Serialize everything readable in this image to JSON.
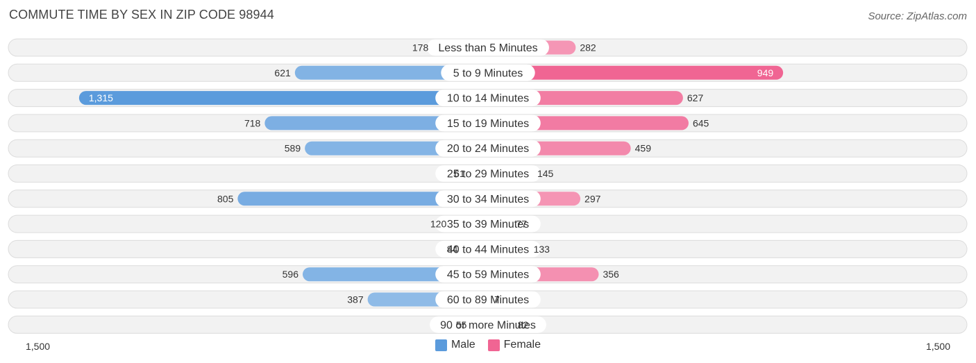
{
  "header": {
    "title": "COMMUTE TIME BY SEX IN ZIP CODE 98944",
    "source": "Source: ZipAtlas.com"
  },
  "colors": {
    "male": "#5b9bdc",
    "female": "#f06593"
  },
  "chart_data": {
    "type": "bar",
    "orientation": "diverging-horizontal",
    "categories": [
      "Less than 5 Minutes",
      "5 to 9 Minutes",
      "10 to 14 Minutes",
      "15 to 19 Minutes",
      "20 to 24 Minutes",
      "25 to 29 Minutes",
      "30 to 34 Minutes",
      "35 to 39 Minutes",
      "40 to 44 Minutes",
      "45 to 59 Minutes",
      "60 to 89 Minutes",
      "90 or more Minutes"
    ],
    "series": [
      {
        "name": "Male",
        "values": [
          178,
          621,
          1315,
          718,
          589,
          61,
          805,
          120,
          84,
          596,
          387,
          55
        ]
      },
      {
        "name": "Female",
        "values": [
          282,
          949,
          627,
          645,
          459,
          145,
          297,
          77,
          133,
          356,
          7,
          82
        ]
      }
    ],
    "axis": {
      "left_label": "1,500",
      "right_label": "1,500",
      "max": 1500
    },
    "legend": {
      "position": "bottom-center",
      "items": [
        "Male",
        "Female"
      ]
    }
  }
}
